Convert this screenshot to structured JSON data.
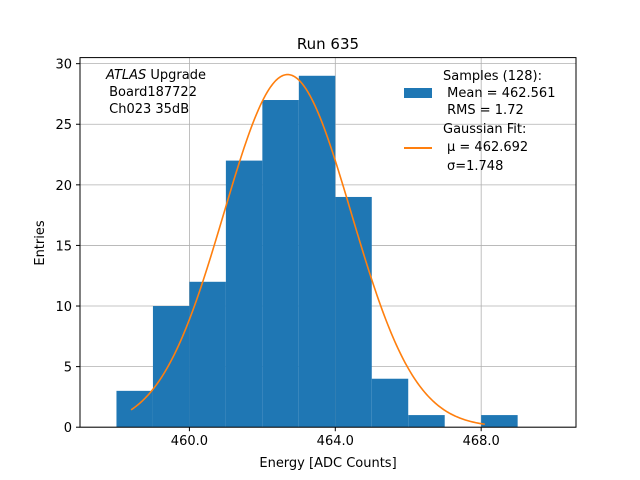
{
  "chart_data": {
    "type": "histogram",
    "title": "Run 635",
    "xlabel": "Energy [ADC Counts]",
    "ylabel": "Entries",
    "xlim": [
      457.0,
      470.6
    ],
    "ylim": [
      0,
      30.5
    ],
    "xticks": [
      460.0,
      464.0,
      468.0
    ],
    "xtick_labels": [
      "460.0",
      "464.0",
      "468.0"
    ],
    "yticks": [
      0,
      5,
      10,
      15,
      20,
      25,
      30
    ],
    "ytick_labels": [
      "0",
      "5",
      "10",
      "15",
      "20",
      "25",
      "30"
    ],
    "grid": true,
    "bin_edges": [
      458,
      459,
      460,
      461,
      462,
      463,
      464,
      465,
      466,
      467,
      468,
      469
    ],
    "counts": [
      3,
      10,
      12,
      22,
      27,
      29,
      19,
      4,
      1,
      0,
      1
    ],
    "bar_color": "#1f77b4",
    "fit": {
      "name": "Gaussian Fit",
      "color": "#ff7f0e",
      "mu": 462.692,
      "sigma": 1.748,
      "amplitude": 29.1,
      "x_range": [
        458.4,
        468.1
      ]
    },
    "annotation": {
      "italic_part": "ATLAS",
      "line1_rest": " Upgrade",
      "line2": " Board187722",
      "line3": " Ch023 35dB"
    },
    "legend": {
      "position": "top-right",
      "samples_lines": [
        "Samples (128):",
        " Mean = 462.561",
        " RMS = 1.72"
      ],
      "fit_lines": [
        "Gaussian Fit:",
        "μ = 462.692",
        "σ=1.748"
      ]
    }
  }
}
